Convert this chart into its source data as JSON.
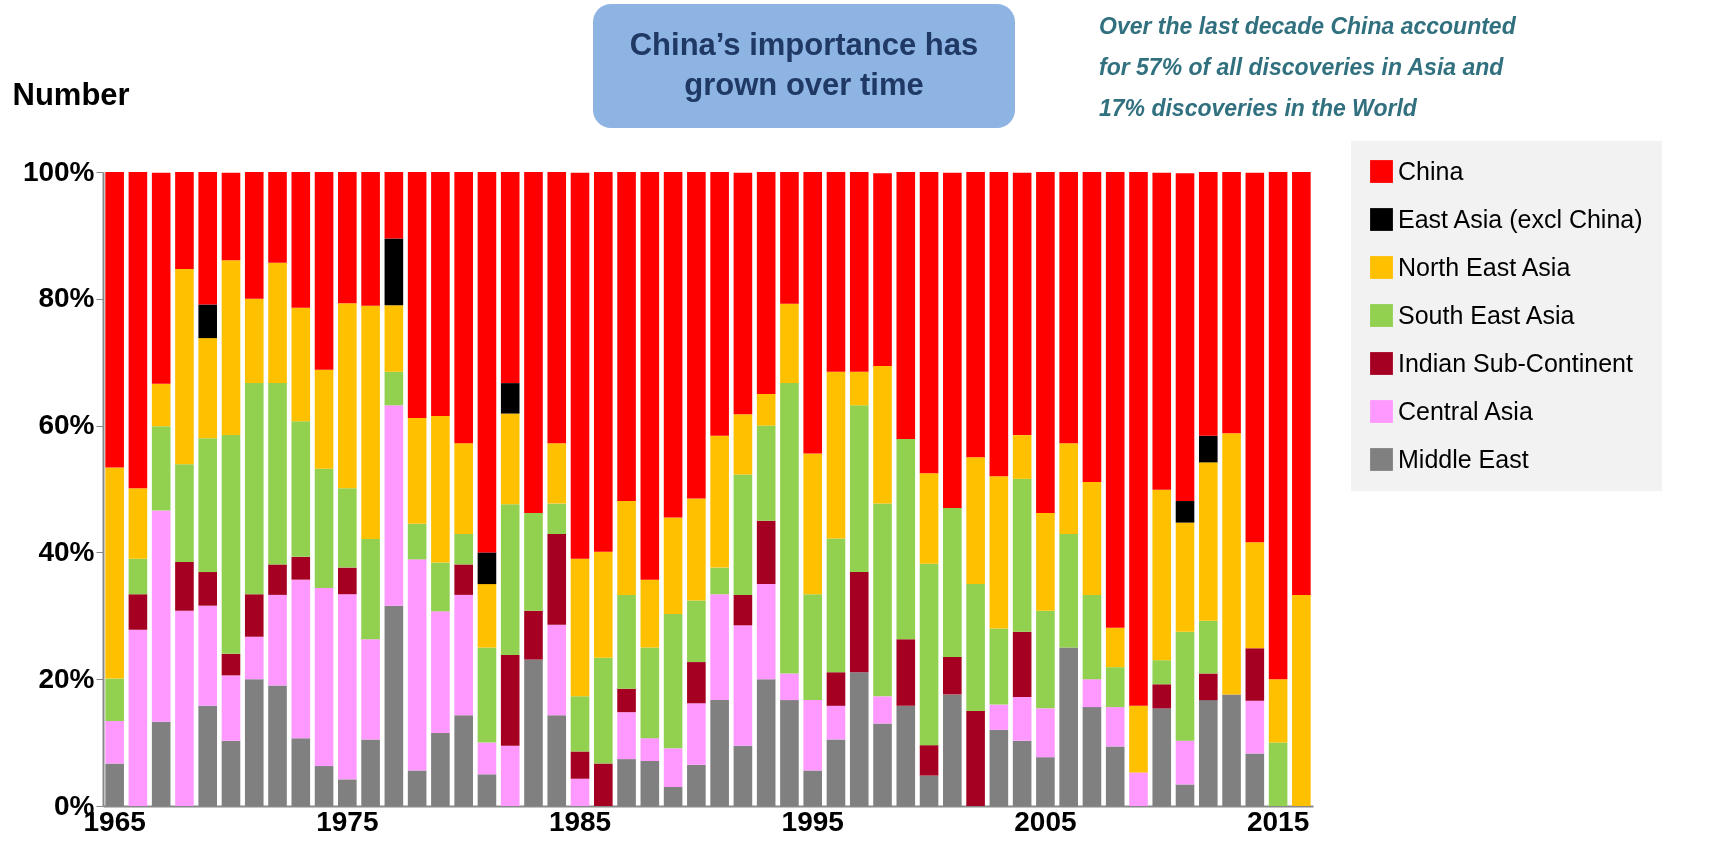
{
  "chart_data": {
    "type": "bar",
    "stacked": true,
    "title": "China’s importance has grown over time",
    "ylabel": "Number",
    "annotations": [
      "Over the last decade China accounted for 57% of all discoveries in Asia and 17% discoveries in the World"
    ],
    "categories": [
      "1965",
      null,
      null,
      null,
      null,
      null,
      null,
      null,
      null,
      null,
      "1975",
      null,
      null,
      null,
      null,
      null,
      null,
      null,
      null,
      null,
      "1985",
      null,
      null,
      null,
      null,
      null,
      null,
      null,
      null,
      null,
      "1995",
      null,
      null,
      null,
      null,
      null,
      null,
      null,
      null,
      null,
      "2005",
      null,
      null,
      null,
      null,
      null,
      null,
      null,
      null,
      null,
      "2015",
      null
    ],
    "ylim": [
      0,
      100
    ],
    "yticks": [
      {
        "value": 0,
        "label": "0%"
      },
      {
        "value": 20,
        "label": "20%"
      },
      {
        "value": 40,
        "label": "40%"
      },
      {
        "value": 60,
        "label": "60%"
      },
      {
        "value": 80,
        "label": "80%"
      },
      {
        "value": 100,
        "label": "100%"
      }
    ],
    "grid": false,
    "legend": "right",
    "series": [
      {
        "name": "Middle East",
        "color": "#808080",
        "values": [
          6.7,
          0,
          13.3,
          0,
          15.8,
          10.3,
          20,
          19,
          10.7,
          6.3,
          4.2,
          10.5,
          31.6,
          5.6,
          11.5,
          14.3,
          5,
          0,
          23.1,
          14.3,
          0,
          0,
          7.4,
          7.1,
          3,
          6.5,
          16.7,
          9.5,
          20,
          16.7,
          5.6,
          10.5,
          21.1,
          13,
          15.8,
          4.8,
          17.6,
          0,
          12,
          10.3,
          7.7,
          25,
          15.6,
          9.4,
          0,
          15.4,
          3.4,
          16.7,
          17.6,
          8.3,
          0,
          0
        ]
      },
      {
        "name": "Central Asia",
        "color": "#ff99ff",
        "values": [
          6.7,
          27.8,
          33.3,
          30.8,
          15.8,
          10.3,
          6.7,
          14.3,
          25,
          28.1,
          29.2,
          15.8,
          31.6,
          33.3,
          19.2,
          19,
          5,
          9.5,
          0,
          14.3,
          4.3,
          0,
          7.4,
          3.6,
          6.1,
          9.7,
          16.7,
          19,
          15,
          4.2,
          11.1,
          5.3,
          0,
          4.3,
          0,
          0,
          0,
          0,
          4,
          6.9,
          7.7,
          0,
          4.4,
          6.2,
          5.3,
          0,
          6.9,
          0,
          0,
          8.3,
          0,
          0
        ]
      },
      {
        "name": "Indian Sub-Continent",
        "color": "#a50021",
        "values": [
          0,
          5.6,
          0,
          7.7,
          5.3,
          3.4,
          6.7,
          4.8,
          3.6,
          0,
          4.2,
          0,
          0,
          0,
          0,
          4.8,
          0,
          14.3,
          7.7,
          14.3,
          4.3,
          6.7,
          3.7,
          0,
          0,
          6.5,
          0,
          4.8,
          10,
          0,
          0,
          5.3,
          15.8,
          0,
          10.5,
          4.8,
          5.9,
          15,
          0,
          10.3,
          0,
          0,
          0,
          0,
          0,
          3.8,
          0,
          4.2,
          0,
          8.3,
          0,
          0
        ]
      },
      {
        "name": "South East Asia",
        "color": "#92d050",
        "values": [
          6.7,
          5.6,
          13.3,
          15.4,
          21.1,
          34.5,
          33.3,
          28.6,
          21.4,
          18.8,
          12.5,
          15.8,
          5.3,
          5.6,
          7.7,
          4.8,
          15,
          23.8,
          15.4,
          4.8,
          8.7,
          16.7,
          14.8,
          14.3,
          21.2,
          9.7,
          4.2,
          19,
          15,
          45.8,
          16.7,
          21.1,
          26.3,
          30.4,
          31.6,
          28.6,
          23.5,
          20,
          12,
          24.1,
          15.4,
          17.9,
          13.3,
          6.3,
          0,
          3.8,
          17.2,
          8.3,
          0,
          0,
          10,
          0
        ]
      },
      {
        "name": "North East Asia",
        "color": "#ffc000",
        "values": [
          33.3,
          11.1,
          6.7,
          30.8,
          15.8,
          27.6,
          13.3,
          19,
          17.9,
          15.6,
          29.2,
          36.8,
          10.5,
          16.7,
          23.1,
          14.3,
          10,
          14.3,
          0,
          9.5,
          21.7,
          16.7,
          14.8,
          10.7,
          15.2,
          16.1,
          20.8,
          9.5,
          5,
          12.5,
          22.2,
          26.3,
          5.3,
          21.7,
          0,
          14.3,
          0,
          20,
          24,
          6.9,
          15.4,
          14.3,
          17.8,
          6.2,
          10.5,
          26.9,
          17.2,
          25,
          41.2,
          16.7,
          10,
          33.3
        ]
      },
      {
        "name": "East Asia (excl China)",
        "color": "#000000",
        "values": [
          0,
          0,
          0,
          0,
          5.3,
          0,
          0,
          0,
          0,
          0,
          0,
          0,
          10.5,
          0,
          0,
          0,
          5,
          4.8,
          0,
          0,
          0,
          0,
          0,
          0,
          0,
          0,
          0,
          0,
          0,
          0,
          0,
          0,
          0,
          0,
          0,
          0,
          0,
          0,
          0,
          0,
          0,
          0,
          0,
          0,
          0,
          0,
          3.4,
          4.2,
          0,
          0,
          0,
          0
        ]
      },
      {
        "name": "China",
        "color": "#ff0000",
        "values": [
          46.6,
          49.9,
          33.3,
          15.3,
          20.9,
          13.8,
          20,
          14.3,
          21.4,
          31.2,
          20.7,
          21.1,
          10.5,
          38.8,
          38.5,
          42.8,
          60,
          33.3,
          53.8,
          42.8,
          60.9,
          59.9,
          51.9,
          64.3,
          54.5,
          51.5,
          41.6,
          38.1,
          35,
          20.8,
          44.4,
          31.5,
          31.5,
          30.4,
          42.1,
          47.5,
          52.9,
          45,
          48,
          41.4,
          53.8,
          42.8,
          48.9,
          71.9,
          84.2,
          50,
          51.7,
          41.6,
          41.2,
          58.3,
          80,
          66.7
        ]
      }
    ]
  }
}
